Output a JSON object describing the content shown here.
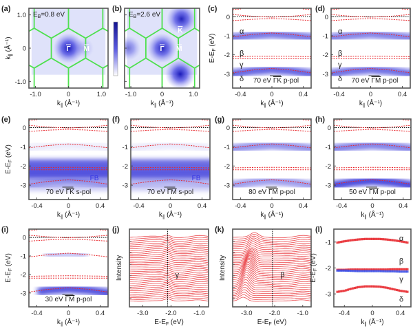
{
  "figure": {
    "colors": {
      "calc_band": "#e8262b",
      "fermi": "#111111",
      "bz": "#4fe04f",
      "intensity": "#2626d6",
      "colorbar_high": "#14148f",
      "colorbar_low": "#ffffff",
      "gamma_band": "#3a4fe8"
    }
  },
  "dft_bands": {
    "k": [
      -0.5,
      -0.25,
      0,
      0.25,
      0.5
    ],
    "fermi_level_eV": 0,
    "bands": [
      [
        0.12,
        0.03,
        -0.02,
        0.03,
        0.12
      ],
      [
        -0.2,
        -0.13,
        -0.09,
        -0.13,
        -0.2
      ],
      [
        -1.05,
        -0.93,
        -0.85,
        -0.93,
        -1.05
      ],
      [
        -2.1,
        -2.08,
        -2.07,
        -2.08,
        -2.1
      ],
      [
        -2.2,
        -2.2,
        -2.2,
        -2.2,
        -2.2
      ],
      [
        -2.95,
        -2.8,
        -2.72,
        -2.8,
        -2.95
      ]
    ]
  },
  "chart_data": [
    {
      "panel": "(a)",
      "type": "heatmap",
      "annotation": {
        "main": "E",
        "sub": "B",
        "rest": "=0.8 eV"
      },
      "xlabel": {
        "main": "k",
        "sub": "∥",
        "rest": " (Å⁻¹)"
      },
      "ylabel": {
        "main": "k",
        "sub": "∥",
        "rest": " (Å⁻¹)"
      },
      "xlim": [
        -1.2,
        1.2
      ],
      "ylim": [
        1.2,
        -1.2
      ],
      "xticks": [
        -1,
        0,
        1
      ],
      "xticklabels": [
        "-1.0",
        "0",
        "1.0"
      ],
      "yticks": [
        1,
        0,
        -1
      ],
      "yticklabels": [
        "1.0",
        "0",
        "-1.0"
      ],
      "points": [
        {
          "label": "Γ",
          "k": [
            0,
            0
          ]
        },
        {
          "label": "M",
          "k": [
            0.55,
            0
          ]
        }
      ],
      "spots": [
        {
          "k": [
            0,
            0
          ],
          "strength": 1.0
        },
        {
          "k": [
            0.45,
            0.0
          ],
          "strength": 0.25
        }
      ]
    },
    {
      "panel": "(b)",
      "type": "heatmap",
      "annotation": {
        "main": "E",
        "sub": "B",
        "rest": "=2.6 eV"
      },
      "xlabel": {
        "main": "k",
        "sub": "∥",
        "rest": " (Å⁻¹)"
      },
      "xlim": [
        -1.2,
        1.2
      ],
      "ylim": [
        1.2,
        -1.2
      ],
      "xticks": [
        -1,
        0,
        1
      ],
      "xticklabels": [
        "-1.0",
        "0",
        "1.0"
      ],
      "yticks": [
        1,
        0,
        -1
      ],
      "yticklabels": [],
      "points": [
        {
          "label": "Γ",
          "k": [
            0,
            0
          ]
        },
        {
          "label": "M",
          "k": [
            0.55,
            0
          ]
        },
        {
          "label": "K",
          "k": [
            0.58,
            0.55
          ]
        }
      ],
      "spots": [
        {
          "k": [
            0,
            0
          ],
          "strength": 0.95
        },
        {
          "k": [
            0.62,
            0.88
          ],
          "strength": 0.95
        },
        {
          "k": [
            0.58,
            -0.78
          ],
          "strength": 1.0
        },
        {
          "k": [
            -1.08,
            0
          ],
          "strength": 0.55
        }
      ]
    },
    {
      "panel": "(c)",
      "type": "heatmap",
      "xlim": [
        -0.5,
        0.5
      ],
      "ylim": [
        0.45,
        -3.75
      ],
      "xticks": [
        -0.4,
        0,
        0.4
      ],
      "xticklabels": [
        "-0.4",
        "0",
        "0.4"
      ],
      "yticks": [
        0,
        -1,
        -2,
        -3
      ],
      "yticklabels": [
        "0",
        "-1",
        "-2",
        "-3"
      ],
      "xlabel": {
        "main": "k",
        "sub": "∥",
        "rest": " (Å⁻¹)"
      },
      "ylabel": {
        "main": "E-E",
        "sub": "F",
        "rest": " (eV)"
      },
      "condition": {
        "energy": "70 eV",
        "direction": "ΓK",
        "pol": "p-pol"
      },
      "band_labels": [
        {
          "text": "α",
          "E": -0.75
        },
        {
          "text": "β",
          "E": -1.9
        },
        {
          "text": "γ",
          "E": -2.5
        },
        {
          "text": "δ",
          "E": -3.25
        }
      ],
      "intensity": [
        {
          "band": 2,
          "strength": 0.75
        },
        {
          "band": 5,
          "strength": 0.85
        }
      ]
    },
    {
      "panel": "(d)",
      "type": "heatmap",
      "xlim": [
        -0.5,
        0.5
      ],
      "ylim": [
        0.45,
        -3.75
      ],
      "xticks": [
        -0.4,
        0,
        0.4
      ],
      "xticklabels": [
        "-0.4",
        "0",
        "0.4"
      ],
      "yticks": [
        0,
        -1,
        -2,
        -3
      ],
      "yticklabels": [
        "0",
        "-1",
        "-2",
        "-3"
      ],
      "xlabel": {
        "main": "k",
        "sub": "∥",
        "rest": " (Å⁻¹)"
      },
      "condition": {
        "energy": "70 eV",
        "direction": "ΓM",
        "pol": "p-pol"
      },
      "band_labels": [
        {
          "text": "α",
          "E": -0.75
        },
        {
          "text": "β",
          "E": -1.9
        },
        {
          "text": "γ",
          "E": -2.5
        },
        {
          "text": "δ",
          "E": -3.25
        }
      ],
      "intensity": [
        {
          "band": 2,
          "strength": 0.7
        },
        {
          "band": 5,
          "strength": 0.8
        }
      ]
    },
    {
      "panel": "(e)",
      "type": "heatmap",
      "xlim": [
        -0.5,
        0.5
      ],
      "ylim": [
        0.45,
        -3.75
      ],
      "xticks": [
        -0.4,
        0,
        0.4
      ],
      "xticklabels": [
        "-0.4",
        "0",
        "0.4"
      ],
      "yticks": [
        0,
        -1,
        -2,
        -3
      ],
      "yticklabels": [
        "0",
        "-1",
        "-2",
        "-3"
      ],
      "xlabel": {
        "main": "k",
        "sub": "∥",
        "rest": " (Å⁻¹)"
      },
      "ylabel": {
        "main": "E-E",
        "sub": "F",
        "rest": " (eV)"
      },
      "condition": {
        "energy": "70 eV",
        "direction": "ΓK",
        "pol": "s-pol"
      },
      "flat_band": {
        "label": "FB",
        "E": -2.15,
        "strength": 0.9
      },
      "intensity": [
        {
          "band": 2,
          "strength": 0.12
        },
        {
          "band": 5,
          "strength": 0.35
        }
      ]
    },
    {
      "panel": "(f)",
      "type": "heatmap",
      "xlim": [
        -0.5,
        0.5
      ],
      "ylim": [
        0.45,
        -3.75
      ],
      "xticks": [
        -0.4,
        0,
        0.4
      ],
      "xticklabels": [
        "-0.4",
        "0",
        "0.4"
      ],
      "yticks": [
        0,
        -1,
        -2,
        -3
      ],
      "yticklabels": [
        "0",
        "-1",
        "-2",
        "-3"
      ],
      "xlabel": {
        "main": "k",
        "sub": "∥",
        "rest": " (Å⁻¹)"
      },
      "condition": {
        "energy": "70 eV",
        "direction": "ΓM",
        "pol": "s-pol"
      },
      "flat_band": {
        "label": "FB",
        "E": -2.15,
        "strength": 0.85
      },
      "intensity": [
        {
          "band": 2,
          "strength": 0.1
        },
        {
          "band": 5,
          "strength": 0.15
        }
      ]
    },
    {
      "panel": "(g)",
      "type": "heatmap",
      "xlim": [
        -0.5,
        0.5
      ],
      "ylim": [
        0.45,
        -3.75
      ],
      "xticks": [
        -0.4,
        0,
        0.4
      ],
      "xticklabels": [
        "-0.4",
        "0",
        "0.4"
      ],
      "yticks": [
        0,
        -1,
        -2,
        -3
      ],
      "yticklabels": [
        "0",
        "-1",
        "-2",
        "-3"
      ],
      "xlabel": {
        "main": "k",
        "sub": "∥",
        "rest": " (Å⁻¹)"
      },
      "condition": {
        "energy": "80 eV",
        "direction": "ΓM",
        "pol": "p-pol"
      },
      "intensity": [
        {
          "band": 2,
          "strength": 0.6
        },
        {
          "band": 5,
          "strength": 0.55
        }
      ]
    },
    {
      "panel": "(h)",
      "type": "heatmap",
      "xlim": [
        -0.5,
        0.5
      ],
      "ylim": [
        0.45,
        -3.75
      ],
      "xticks": [
        -0.4,
        0,
        0.4
      ],
      "xticklabels": [
        "-0.4",
        "0",
        "0.4"
      ],
      "yticks": [
        0,
        -1,
        -2,
        -3
      ],
      "yticklabels": [
        "0",
        "-1",
        "-2",
        "-3"
      ],
      "xlabel": {
        "main": "k",
        "sub": "∥",
        "rest": " (Å⁻¹)"
      },
      "condition": {
        "energy": "50 eV",
        "direction": "ΓM",
        "pol": "p-pol"
      },
      "intensity": [
        {
          "band": 2,
          "strength": 0.7
        },
        {
          "band": 5,
          "strength": 1.0
        }
      ]
    },
    {
      "panel": "(i)",
      "type": "heatmap",
      "xlim": [
        -0.5,
        0.5
      ],
      "ylim": [
        0.45,
        -3.75
      ],
      "xticks": [
        -0.4,
        0,
        0.4
      ],
      "xticklabels": [
        "-0.4",
        "0",
        "0.4"
      ],
      "yticks": [
        0,
        -1,
        -2,
        -3
      ],
      "yticklabels": [
        "0",
        "-1",
        "-2",
        "-3"
      ],
      "xlabel": {
        "main": "k",
        "sub": "∥",
        "rest": " (Å⁻¹)"
      },
      "ylabel": {
        "main": "E-E",
        "sub": "F",
        "rest": " (eV)"
      },
      "condition": {
        "energy": "30 eV",
        "direction": "ΓM",
        "pol": "p-pol"
      },
      "intensity": [
        {
          "band": 2,
          "strength": 0.3,
          "k_range": [
            -0.2,
            0.15
          ]
        },
        {
          "band": 5,
          "strength": 0.95,
          "k_range": [
            -0.3,
            0.5
          ]
        }
      ]
    },
    {
      "panel": "(j)",
      "type": "line",
      "xlim": [
        -3.47,
        -0.67
      ],
      "xticks": [
        -3,
        -2,
        -1
      ],
      "xticklabels": [
        "-3.0",
        "-2.0",
        "-1.0"
      ],
      "xlabel": {
        "main": "E-E",
        "sub": "F",
        "rest": " (eV)"
      },
      "ylabel": "Intensity",
      "n_spectra": 36,
      "peak_eV": [
        -2.12,
        -2.12
      ],
      "marker_eV": -2.12,
      "label": {
        "text": "γ",
        "E": -1.85
      }
    },
    {
      "panel": "(k)",
      "type": "line",
      "xlim": [
        -3.5,
        -0.7
      ],
      "xticks": [
        -3,
        -2,
        -1
      ],
      "xticklabels": [
        "-3.0",
        "-2.0",
        "-1.0"
      ],
      "xlabel": {
        "main": "E-E",
        "sub": "F",
        "rest": " (eV)"
      },
      "ylabel": "Intensity",
      "n_spectra": 36,
      "peak_eV": [
        -3.12,
        -2.72
      ],
      "marker_eV": -2.08,
      "label": {
        "text": "β",
        "E": -1.8
      }
    },
    {
      "panel": "(l)",
      "type": "scatter",
      "xlim": [
        -0.55,
        0.55
      ],
      "ylim": [
        -0.5,
        -3.5
      ],
      "xticks": [
        -0.4,
        0,
        0.4
      ],
      "xticklabels": [
        "-0.4",
        "0",
        "0.4"
      ],
      "yticks": [
        -1,
        -2,
        -3
      ],
      "yticklabels": [
        "-1",
        "-2",
        "-3"
      ],
      "xlabel": {
        "main": "k",
        "sub": "∥",
        "rest": " (Å⁻¹)"
      },
      "ylabel": {
        "main": "E-E",
        "sub": "F",
        "rest": " (eV)"
      },
      "k": [
        -0.5,
        -0.4,
        -0.3,
        -0.2,
        -0.1,
        0,
        0.1,
        0.2,
        0.3,
        0.4,
        0.5
      ],
      "series": [
        {
          "label": "α",
          "color": "#e8262b",
          "label_E": -0.85,
          "E": [
            -1.02,
            -0.97,
            -0.93,
            -0.9,
            -0.88,
            -0.88,
            -0.88,
            -0.9,
            -0.93,
            -0.97,
            -1.02
          ]
        },
        {
          "label": "β",
          "color": "#e8262b",
          "label_E": -1.72,
          "E": [
            -2.07,
            -2.07,
            -2.06,
            -2.06,
            -2.06,
            -2.06,
            -2.06,
            -2.06,
            -2.05,
            -2.05,
            -2.05
          ]
        },
        {
          "label": "γ",
          "color": "#3a4fe8",
          "label_E": -2.42,
          "E": [
            -2.1,
            -2.1,
            -2.11,
            -2.12,
            -2.12,
            -2.12,
            -2.12,
            -2.13,
            -2.13,
            -2.14,
            -2.14
          ]
        },
        {
          "label": "δ",
          "color": "#e8262b",
          "label_E": -3.2,
          "E": [
            -2.92,
            -2.88,
            -2.8,
            -2.74,
            -2.71,
            -2.71,
            -2.72,
            -2.76,
            -2.82,
            -2.88,
            -2.92
          ]
        }
      ]
    }
  ]
}
